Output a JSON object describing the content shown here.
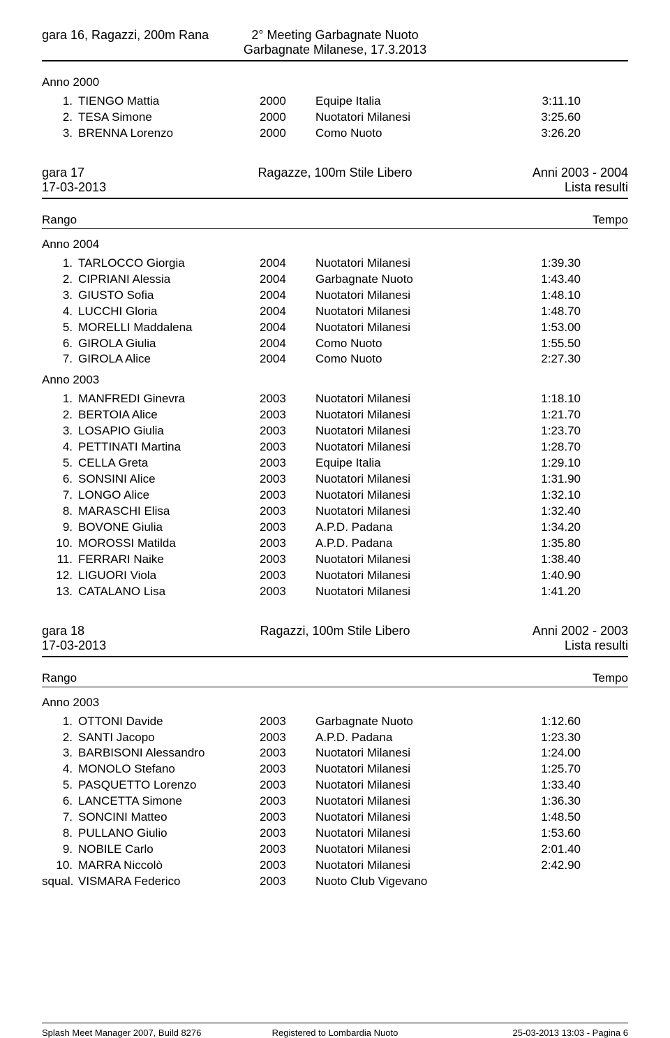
{
  "meeting": {
    "title_line1": "2° Meeting Garbagnate Nuoto",
    "title_line2": "Garbagnate Milanese, 17.3.2013"
  },
  "top_event_title": "gara 16, Ragazzi, 200m Rana",
  "sections": [
    {
      "year_label": "Anno 2000",
      "rows": [
        {
          "rank": "1.",
          "name": "TIENGO Mattia",
          "year": "2000",
          "team": "Equipe Italia",
          "time": "3:11.10"
        },
        {
          "rank": "2.",
          "name": "TESA Simone",
          "year": "2000",
          "team": "Nuotatori Milanesi",
          "time": "3:25.60"
        },
        {
          "rank": "3.",
          "name": "BRENNA Lorenzo",
          "year": "2000",
          "team": "Como Nuoto",
          "time": "3:26.20"
        }
      ]
    }
  ],
  "event17": {
    "left": "gara 17",
    "center": "Ragazze, 100m Stile Libero",
    "right": "Anni 2003 - 2004",
    "date": "17-03-2013",
    "lista": "Lista resulti",
    "rango": "Rango",
    "tempo": "Tempo",
    "groups": [
      {
        "year_label": "Anno 2004",
        "rows": [
          {
            "rank": "1.",
            "name": "TARLOCCO Giorgia",
            "year": "2004",
            "team": "Nuotatori Milanesi",
            "time": "1:39.30"
          },
          {
            "rank": "2.",
            "name": "CIPRIANI Alessia",
            "year": "2004",
            "team": "Garbagnate Nuoto",
            "time": "1:43.40"
          },
          {
            "rank": "3.",
            "name": "GIUSTO Sofia",
            "year": "2004",
            "team": "Nuotatori Milanesi",
            "time": "1:48.10"
          },
          {
            "rank": "4.",
            "name": "LUCCHI Gloria",
            "year": "2004",
            "team": "Nuotatori Milanesi",
            "time": "1:48.70"
          },
          {
            "rank": "5.",
            "name": "MORELLI Maddalena",
            "year": "2004",
            "team": "Nuotatori Milanesi",
            "time": "1:53.00"
          },
          {
            "rank": "6.",
            "name": "GIROLA Giulia",
            "year": "2004",
            "team": "Como Nuoto",
            "time": "1:55.50"
          },
          {
            "rank": "7.",
            "name": "GIROLA Alice",
            "year": "2004",
            "team": "Como Nuoto",
            "time": "2:27.30"
          }
        ]
      },
      {
        "year_label": "Anno 2003",
        "rows": [
          {
            "rank": "1.",
            "name": "MANFREDI Ginevra",
            "year": "2003",
            "team": "Nuotatori Milanesi",
            "time": "1:18.10"
          },
          {
            "rank": "2.",
            "name": "BERTOIA Alice",
            "year": "2003",
            "team": "Nuotatori Milanesi",
            "time": "1:21.70"
          },
          {
            "rank": "3.",
            "name": "LOSAPIO Giulia",
            "year": "2003",
            "team": "Nuotatori Milanesi",
            "time": "1:23.70"
          },
          {
            "rank": "4.",
            "name": "PETTINATI Martina",
            "year": "2003",
            "team": "Nuotatori Milanesi",
            "time": "1:28.70"
          },
          {
            "rank": "5.",
            "name": "CELLA Greta",
            "year": "2003",
            "team": "Equipe Italia",
            "time": "1:29.10"
          },
          {
            "rank": "6.",
            "name": "SONSINI Alice",
            "year": "2003",
            "team": "Nuotatori Milanesi",
            "time": "1:31.90"
          },
          {
            "rank": "7.",
            "name": "LONGO Alice",
            "year": "2003",
            "team": "Nuotatori Milanesi",
            "time": "1:32.10"
          },
          {
            "rank": "8.",
            "name": "MARASCHI Elisa",
            "year": "2003",
            "team": "Nuotatori Milanesi",
            "time": "1:32.40"
          },
          {
            "rank": "9.",
            "name": "BOVONE Giulia",
            "year": "2003",
            "team": "A.P.D. Padana",
            "time": "1:34.20"
          },
          {
            "rank": "10.",
            "name": "MOROSSI Matilda",
            "year": "2003",
            "team": "A.P.D. Padana",
            "time": "1:35.80"
          },
          {
            "rank": "11.",
            "name": "FERRARI Naike",
            "year": "2003",
            "team": "Nuotatori Milanesi",
            "time": "1:38.40"
          },
          {
            "rank": "12.",
            "name": "LIGUORI Viola",
            "year": "2003",
            "team": "Nuotatori Milanesi",
            "time": "1:40.90"
          },
          {
            "rank": "13.",
            "name": "CATALANO Lisa",
            "year": "2003",
            "team": "Nuotatori Milanesi",
            "time": "1:41.20"
          }
        ]
      }
    ]
  },
  "event18": {
    "left": "gara 18",
    "center": "Ragazzi, 100m Stile Libero",
    "right": "Anni 2002 - 2003",
    "date": "17-03-2013",
    "lista": "Lista resulti",
    "rango": "Rango",
    "tempo": "Tempo",
    "groups": [
      {
        "year_label": "Anno 2003",
        "rows": [
          {
            "rank": "1.",
            "name": "OTTONI Davide",
            "year": "2003",
            "team": "Garbagnate Nuoto",
            "time": "1:12.60"
          },
          {
            "rank": "2.",
            "name": "SANTI Jacopo",
            "year": "2003",
            "team": "A.P.D. Padana",
            "time": "1:23.30"
          },
          {
            "rank": "3.",
            "name": "BARBISONI Alessandro",
            "year": "2003",
            "team": "Nuotatori Milanesi",
            "time": "1:24.00"
          },
          {
            "rank": "4.",
            "name": "MONOLO Stefano",
            "year": "2003",
            "team": "Nuotatori Milanesi",
            "time": "1:25.70"
          },
          {
            "rank": "5.",
            "name": "PASQUETTO Lorenzo",
            "year": "2003",
            "team": "Nuotatori Milanesi",
            "time": "1:33.40"
          },
          {
            "rank": "6.",
            "name": "LANCETTA Simone",
            "year": "2003",
            "team": "Nuotatori Milanesi",
            "time": "1:36.30"
          },
          {
            "rank": "7.",
            "name": "SONCINI Matteo",
            "year": "2003",
            "team": "Nuotatori Milanesi",
            "time": "1:48.50"
          },
          {
            "rank": "8.",
            "name": "PULLANO Giulio",
            "year": "2003",
            "team": "Nuotatori Milanesi",
            "time": "1:53.60"
          },
          {
            "rank": "9.",
            "name": "NOBILE Carlo",
            "year": "2003",
            "team": "Nuotatori Milanesi",
            "time": "2:01.40"
          },
          {
            "rank": "10.",
            "name": "MARRA Niccolò",
            "year": "2003",
            "team": "Nuotatori Milanesi",
            "time": "2:42.90"
          },
          {
            "rank": "squal.",
            "name": "VISMARA Federico",
            "year": "2003",
            "team": "Nuoto Club Vigevano",
            "time": ""
          }
        ]
      }
    ]
  },
  "footer": {
    "left": "Splash Meet Manager 2007, Build 8276",
    "center": "Registered to Lombardia Nuoto",
    "right": "25-03-2013 13:03 - Pagina 6"
  }
}
